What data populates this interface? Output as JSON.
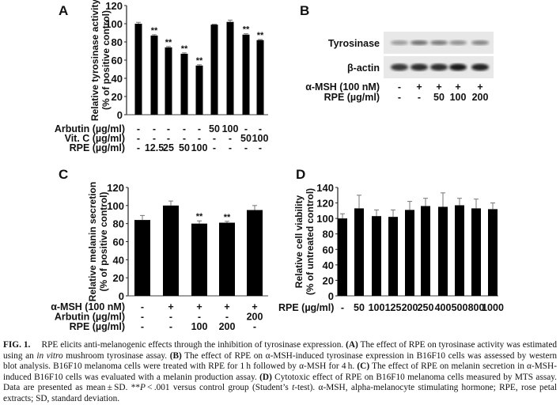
{
  "panels": {
    "A": {
      "label": "A",
      "chart_data": {
        "type": "bar",
        "ylabel": [
          "Relative tyrosinase activity",
          "(% of positive control)"
        ],
        "ylim": [
          0,
          120
        ],
        "yticks": [
          0,
          20,
          40,
          60,
          80,
          100,
          120
        ],
        "values": [
          100,
          87,
          74,
          67,
          54,
          99,
          102,
          88,
          82
        ],
        "errors": [
          1.5,
          1,
          1,
          1,
          1,
          0.5,
          2,
          1,
          0.7
        ],
        "significance": [
          "",
          "**",
          "**",
          "**",
          "**",
          "",
          "",
          "**",
          "**"
        ],
        "conditions": [
          {
            "label": "Arbutin (µg/ml)",
            "values": [
              "-",
              "-",
              "-",
              "-",
              "-",
              "50",
              "100",
              "-",
              "-"
            ]
          },
          {
            "label": "Vit. C (µg/ml)",
            "values": [
              "-",
              "-",
              "-",
              "-",
              "-",
              "-",
              "-",
              "50",
              "100"
            ]
          },
          {
            "label": "RPE (µg/ml)",
            "values": [
              "-",
              "12.5",
              "25",
              "50",
              "100",
              "-",
              "-",
              "-",
              "-"
            ]
          }
        ]
      }
    },
    "B": {
      "label": "B",
      "blot_rows": [
        "Tyrosinase",
        "β-actin"
      ],
      "conditions": [
        {
          "label": "α-MSH (100 nM)",
          "values": [
            "-",
            "+",
            "+",
            "+",
            "+"
          ]
        },
        {
          "label": "RPE (µg/ml)",
          "values": [
            "-",
            "-",
            "50",
            "100",
            "200"
          ]
        }
      ]
    },
    "C": {
      "label": "C",
      "chart_data": {
        "type": "bar",
        "ylabel": [
          "Relative melanin secretion",
          "(% of positive control)"
        ],
        "ylim": [
          0,
          120
        ],
        "yticks": [
          0,
          20,
          40,
          60,
          80,
          100,
          120
        ],
        "values": [
          84,
          100,
          80,
          81,
          95
        ],
        "errors": [
          5,
          5,
          3,
          1.5,
          5
        ],
        "significance": [
          "",
          "",
          "**",
          "**",
          ""
        ],
        "conditions": [
          {
            "label": "α-MSH (100 nM)",
            "values": [
              "-",
              "+",
              "+",
              "+",
              "+"
            ]
          },
          {
            "label": "Arbutin (µg/ml)",
            "values": [
              "-",
              "-",
              "-",
              "-",
              "200"
            ]
          },
          {
            "label": "RPE (µg/ml)",
            "values": [
              "-",
              "-",
              "100",
              "200",
              "-"
            ]
          }
        ]
      }
    },
    "D": {
      "label": "D",
      "chart_data": {
        "type": "bar",
        "ylabel": [
          "Relative cell viability",
          "(% of untreated control)"
        ],
        "ylim": [
          0,
          140
        ],
        "yticks": [
          0,
          20,
          40,
          60,
          80,
          100,
          120,
          140
        ],
        "values": [
          100,
          113,
          103,
          102,
          111,
          116,
          115,
          117,
          113,
          112
        ],
        "errors": [
          6,
          17,
          8,
          9,
          11,
          10,
          18,
          9,
          12,
          8
        ],
        "significance": [
          "",
          "",
          "",
          "",
          "",
          "",
          "",
          "",
          "",
          ""
        ],
        "conditions": [
          {
            "label": "RPE (µg/ml)",
            "values": [
              "-",
              "50",
              "100",
              "125",
              "200",
              "250",
              "400",
              "500",
              "800",
              "1000"
            ]
          }
        ]
      }
    }
  },
  "caption": [
    {
      "t": "FIG. 1.",
      "s": "b"
    },
    {
      "t": "  RPE elicits anti-melanogenic effects through the inhibition of tyrosinase expression. "
    },
    {
      "t": "(A)",
      "s": "b"
    },
    {
      "t": " The effect of RPE on tyrosinase activity was estimated using an "
    },
    {
      "t": "in vitro",
      "s": "i"
    },
    {
      "t": " mushroom tyrosinase assay. "
    },
    {
      "t": "(B)",
      "s": "b"
    },
    {
      "t": " The effect of RPE on α-MSH-induced tyrosinase expression in B16F10 cells was assessed by western blot analysis. B16F10 melanoma cells were treated with RPE for 1 h followed by α-MSH for 4 h. "
    },
    {
      "t": "(C)",
      "s": "b"
    },
    {
      "t": " The effect of RPE on melanin secretion in α-MSH-induced B16F10 cells was evaluated with a melanin production assay. "
    },
    {
      "t": "(D)",
      "s": "b"
    },
    {
      "t": " Cytotoxic effect of RPE on B16F10 melanoma cells measured by MTS assay. Data are presented as mean ± SD. **"
    },
    {
      "t": "P",
      "s": "i"
    },
    {
      "t": " < .001 versus control group (Student’s "
    },
    {
      "t": "t",
      "s": "i"
    },
    {
      "t": "-test). α-MSH, alpha-melanocyte stimulating hormone; RPE, rose petal extracts; SD, standard deviation."
    }
  ]
}
